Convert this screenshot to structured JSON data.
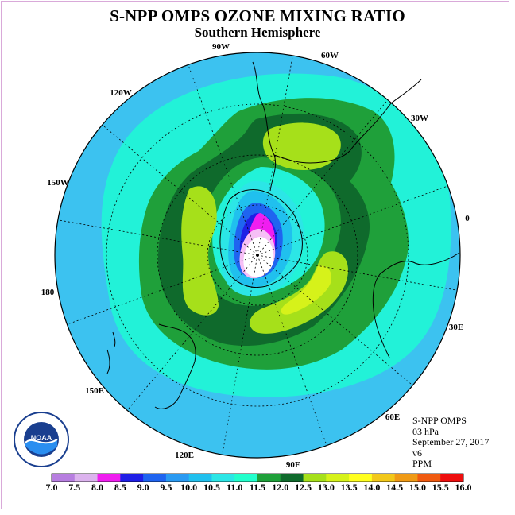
{
  "title": "S-NPP OMPS OZONE MIXING RATIO",
  "subtitle": "Southern Hemisphere",
  "longitude_labels": [
    "90W",
    "60W",
    "30W",
    "0",
    "30E",
    "60E",
    "90E",
    "120E",
    "150E",
    "180",
    "150W",
    "120W"
  ],
  "info": {
    "instrument": "S-NPP OMPS",
    "level": "03 hPa",
    "date": "September 27, 2017",
    "version": "v6",
    "units": "PPM"
  },
  "logo_text": "NOAA",
  "colorbar": {
    "ticks": [
      "7.0",
      "7.5",
      "8.0",
      "8.5",
      "9.0",
      "9.5",
      "10.0",
      "10.5",
      "11.0",
      "11.5",
      "12.0",
      "12.5",
      "13.0",
      "13.5",
      "14.0",
      "14.5",
      "15.0",
      "15.5",
      "16.0"
    ],
    "colors": [
      "#b77ee0",
      "#dcb3ee",
      "#f01ef0",
      "#1f1fe6",
      "#1f64f0",
      "#2a9af2",
      "#20c0ee",
      "#2ce6e6",
      "#22ffcc",
      "#1fa03a",
      "#0f6a2c",
      "#a6e01a",
      "#d6f21a",
      "#ffff1f",
      "#f2c81a",
      "#ef9a16",
      "#f05a10",
      "#ee0e0e",
      "#8a5a40"
    ]
  },
  "color_key": {
    "background": "#3cc2f0",
    "cyan": "#22f2d8",
    "green_light": "#1fa03a",
    "green_dark": "#0f6a2c",
    "yellowgreen": "#a6e01a",
    "yellow": "#d6f21a",
    "magenta": "#f01ef0",
    "pink": "#f6bff6"
  }
}
